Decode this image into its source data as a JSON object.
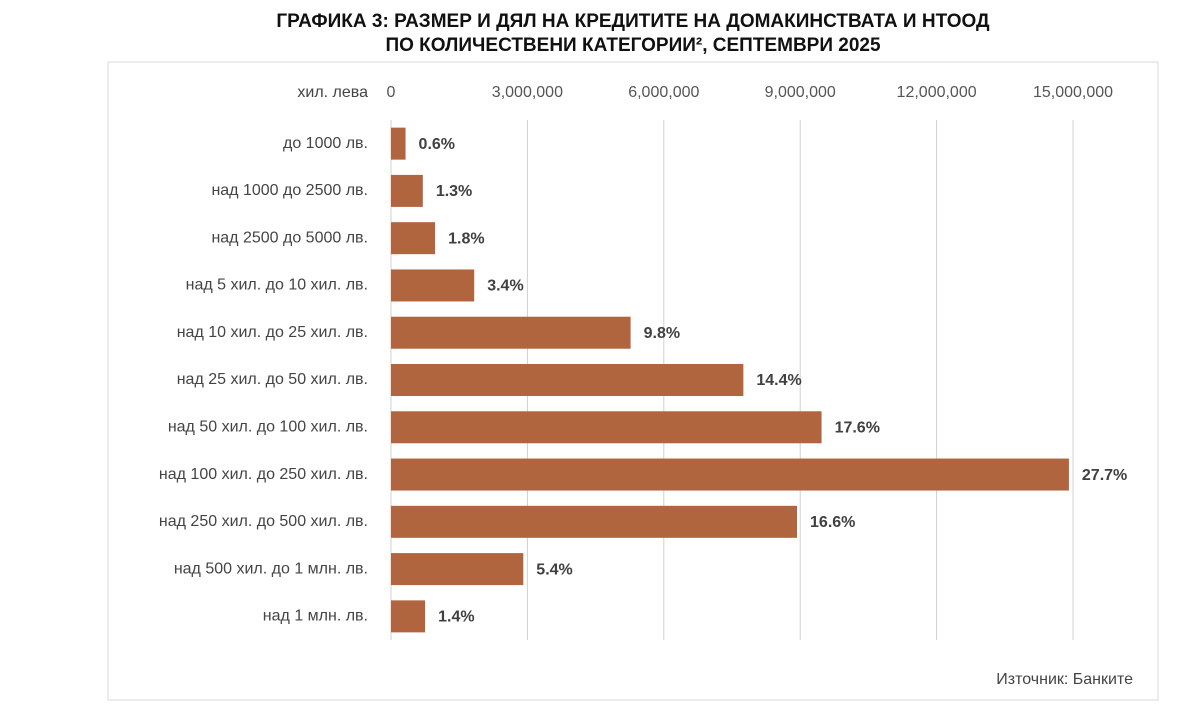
{
  "chart_data": {
    "type": "barh",
    "title": [
      "ГРАФИКА 3: РАЗМЕР И ДЯЛ НА КРЕДИТИТЕ НА ДОМАКИНСТВАТА И НТООД",
      "ПО КОЛИЧЕСТВЕНИ КАТЕГОРИИ², СЕПТЕМВРИ 2025"
    ],
    "unit_label": "хил. лева",
    "source": "Източник: Банките",
    "categories": [
      "до 1000 лв.",
      "над 1000 до 2500 лв.",
      "над 2500 до 5000 лв.",
      "над 5 хил. до 10 хил. лв.",
      "над 10 хил. до 25 хил. лв.",
      "над 25 хил. до 50 хил. лв.",
      "над 50 хил. до 100 хил. лв.",
      "над 100 хил. до 250 хил. лв.",
      "над 250 хил. до 500 хил. лв.",
      "над 500 хил. до 1 млн. лв.",
      "над 1 млн. лв."
    ],
    "values": [
      320000,
      700000,
      970000,
      1830000,
      5270000,
      7750000,
      9470000,
      14910000,
      8930000,
      2910000,
      750000
    ],
    "data_labels": [
      "0.6%",
      "1.3%",
      "1.8%",
      "3.4%",
      "9.8%",
      "14.4%",
      "17.6%",
      "27.7%",
      "16.6%",
      "5.4%",
      "1.4%"
    ],
    "color": "#b0653f",
    "xlim": [
      0,
      15000000
    ],
    "xticks": [
      0,
      {
        "value": 3000000,
        "label": "3,000,000"
      },
      {
        "value": 6000000,
        "label": "6,000,000"
      },
      {
        "value": 9000000,
        "label": "9,000,000"
      },
      {
        "value": 12000000,
        "label": "12,000,000"
      },
      {
        "value": 15000000,
        "label": "15,000,000"
      }
    ],
    "grid": true
  }
}
